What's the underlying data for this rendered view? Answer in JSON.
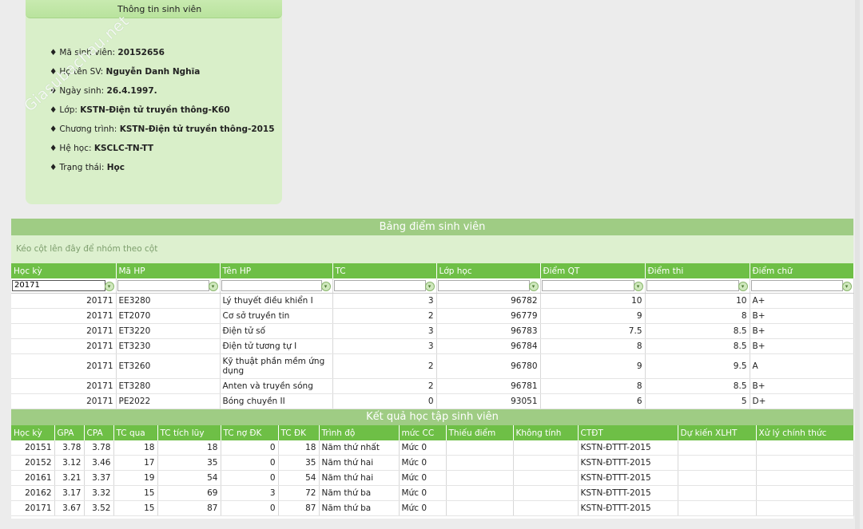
{
  "info": {
    "title": "Thông tin sinh viên",
    "watermark": "Giasubachau.net",
    "fields": [
      {
        "label": "Mã sinh viên:",
        "value": "20152656"
      },
      {
        "label": "Họ tên SV:",
        "value": "Nguyễn Danh Nghĩa"
      },
      {
        "label": "Ngày sinh:",
        "value": "26.4.1997."
      },
      {
        "label": "Lớp:",
        "value": "KSTN-Điện tử truyền thông-K60"
      },
      {
        "label": "Chương trình:",
        "value": "KSTN-Điện tử truyền thông-2015"
      },
      {
        "label": "Hệ học:",
        "value": "KSCLC-TN-TT"
      },
      {
        "label": "Trạng thái:",
        "value": "Học"
      }
    ],
    "bullet": "♦"
  },
  "grades": {
    "title": "Bảng điểm sinh viên",
    "group_hint": "Kéo cột lên đây để nhóm theo cột",
    "columns": [
      "Học kỳ",
      "Mã HP",
      "Tên HP",
      "TC",
      "Lớp học",
      "Điểm QT",
      "Điểm thi",
      "Điểm chữ"
    ],
    "filter_value": "20171",
    "rows": [
      [
        "20171",
        "EE3280",
        "Lý thuyết điều khiển I",
        "3",
        "96782",
        "10",
        "10",
        "A+"
      ],
      [
        "20171",
        "ET2070",
        "Cơ sở truyền tin",
        "2",
        "96779",
        "9",
        "8",
        "B+"
      ],
      [
        "20171",
        "ET3220",
        "Điện tử số",
        "3",
        "96783",
        "7.5",
        "8.5",
        "B+"
      ],
      [
        "20171",
        "ET3230",
        "Điện tử tương tự I",
        "3",
        "96784",
        "8",
        "8.5",
        "B+"
      ],
      [
        "20171",
        "ET3260",
        "Kỹ thuật phần mềm ứng dụng",
        "2",
        "96780",
        "9",
        "9.5",
        "A"
      ],
      [
        "20171",
        "ET3280",
        "Anten và truyền sóng",
        "2",
        "96781",
        "8",
        "8.5",
        "B+"
      ],
      [
        "20171",
        "PE2022",
        "Bóng chuyền II",
        "0",
        "93051",
        "6",
        "5",
        "D+"
      ]
    ]
  },
  "results": {
    "title": "Kết quả học tập sinh viên",
    "columns": [
      "Học kỳ",
      "GPA",
      "CPA",
      "TC qua",
      "TC tích lũy",
      "TC nợ ĐK",
      "TC ĐK",
      "Trình độ",
      "mức CC",
      "Thiếu điểm",
      "Không tính",
      "CTĐT",
      "Dự kiến XLHT",
      "Xử lý chính thức"
    ],
    "rows": [
      [
        "20151",
        "3.78",
        "3.78",
        "18",
        "18",
        "0",
        "18",
        "Năm thứ nhất",
        "Mức 0",
        "",
        "",
        "KSTN-ĐTTT-2015",
        "",
        ""
      ],
      [
        "20152",
        "3.12",
        "3.46",
        "17",
        "35",
        "0",
        "35",
        "Năm thứ hai",
        "Mức 0",
        "",
        "",
        "KSTN-ĐTTT-2015",
        "",
        ""
      ],
      [
        "20161",
        "3.21",
        "3.37",
        "19",
        "54",
        "0",
        "54",
        "Năm thứ hai",
        "Mức 0",
        "",
        "",
        "KSTN-ĐTTT-2015",
        "",
        ""
      ],
      [
        "20162",
        "3.17",
        "3.32",
        "15",
        "69",
        "3",
        "72",
        "Năm thứ ba",
        "Mức 0",
        "",
        "",
        "KSTN-ĐTTT-2015",
        "",
        ""
      ],
      [
        "20171",
        "3.67",
        "3.52",
        "15",
        "87",
        "0",
        "87",
        "Năm thứ ba",
        "Mức 0",
        "",
        "",
        "KSTN-ĐTTT-2015",
        "",
        ""
      ]
    ]
  },
  "colors": {
    "header_green": "#6ebf46",
    "band_green": "#9fcc84",
    "panel_green": "#d9efc9"
  },
  "icons": {
    "filter": "filter-icon"
  }
}
